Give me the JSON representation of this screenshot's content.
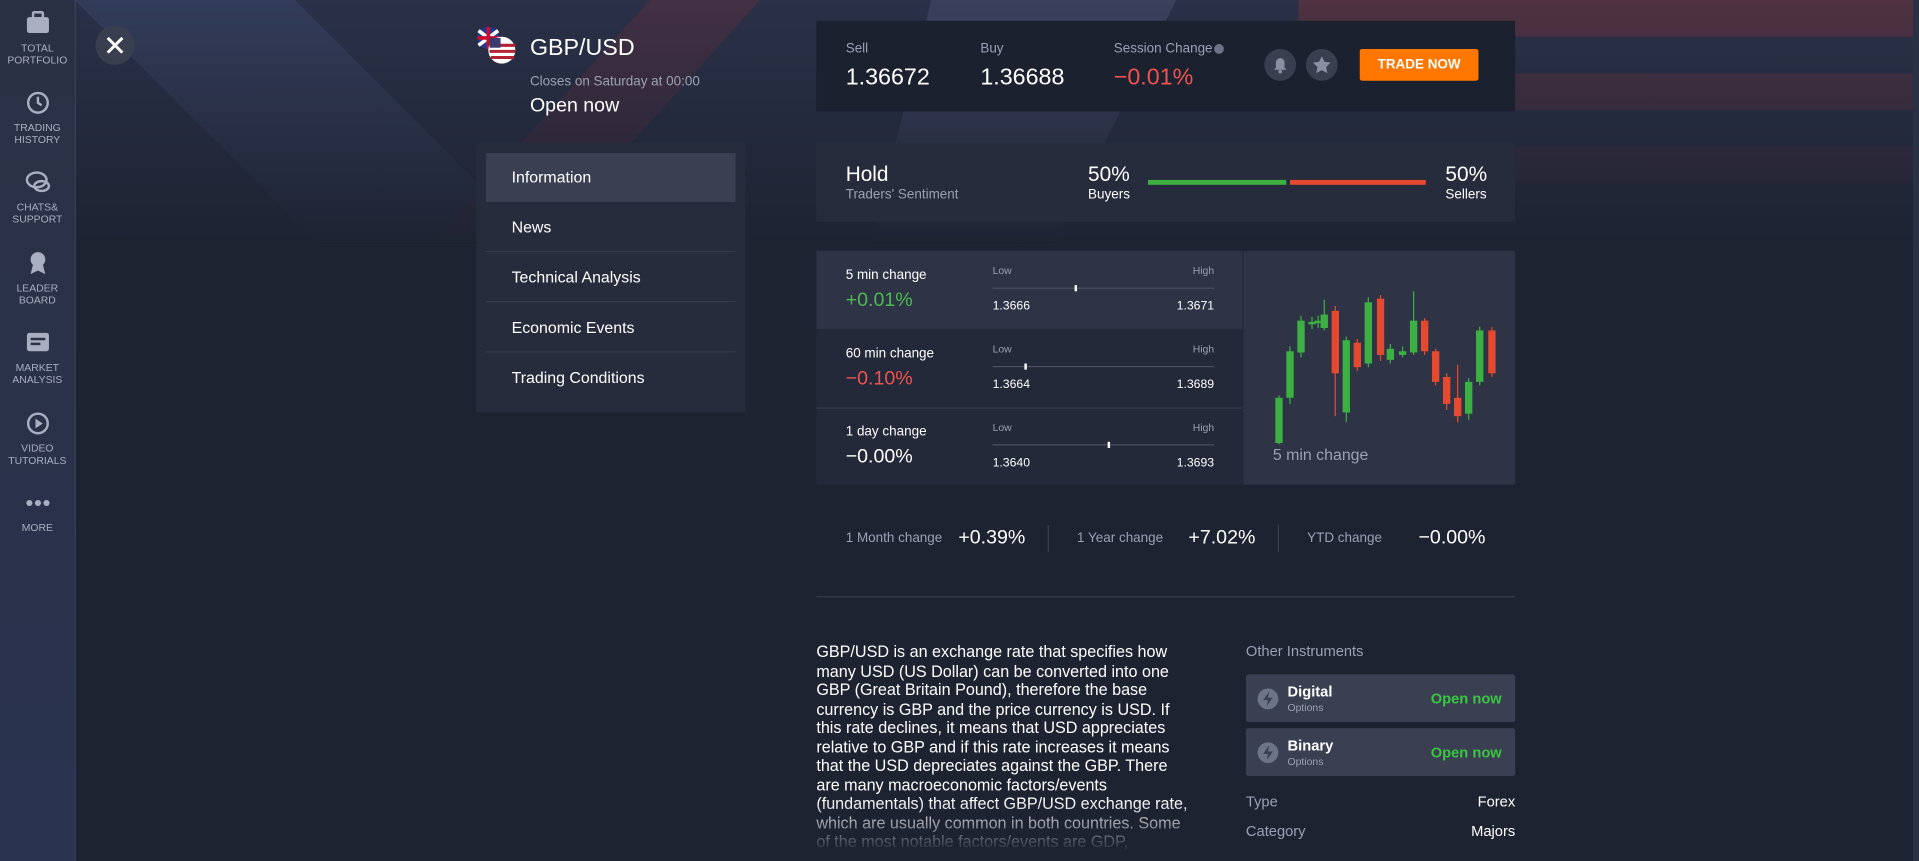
{
  "sidebar": {
    "items": [
      {
        "lines": [
          "TOTAL",
          "PORTFOLIO"
        ]
      },
      {
        "lines": [
          "TRADING",
          "HISTORY"
        ]
      },
      {
        "lines": [
          "CHATS&",
          "SUPPORT"
        ]
      },
      {
        "lines": [
          "LEADER",
          "BOARD"
        ]
      },
      {
        "lines": [
          "MARKET",
          "ANALYSIS"
        ]
      },
      {
        "lines": [
          "VIDEO",
          "TUTORIALS"
        ]
      },
      {
        "lines": [
          "MORE"
        ]
      }
    ]
  },
  "instrument": {
    "title": "GBP/USD",
    "closes": "Closes on Saturday at 00:00",
    "status": "Open now"
  },
  "quote": {
    "sell_label": "Sell",
    "sell": "1.36672",
    "buy_label": "Buy",
    "buy": "1.36688",
    "change_label": "Session Change",
    "change": "−0.01%",
    "button": "TRADE NOW"
  },
  "menu": [
    "Information",
    "News",
    "Technical Analysis",
    "Economic Events",
    "Trading Conditions"
  ],
  "sentiment": {
    "title": "Hold",
    "subtitle": "Traders' Sentiment",
    "buyers": "50%",
    "buyers_label": "Buyers",
    "sellers": "50%",
    "sellers_label": "Sellers"
  },
  "changes": {
    "rows": [
      {
        "label": "5 min change",
        "value": "+0.01%",
        "low_label": "Low",
        "high_label": "High",
        "low": "1.3666",
        "high": "1.3671"
      },
      {
        "label": "60 min change",
        "value": "−0.10%",
        "low_label": "Low",
        "high_label": "High",
        "low": "1.3664",
        "high": "1.3689"
      },
      {
        "label": "1 day change",
        "value": "−0.00%",
        "low_label": "Low",
        "high_label": "High",
        "low": "1.3640",
        "high": "1.3693"
      }
    ],
    "chart_label": "5 min change",
    "periods": [
      {
        "label": "1 Month change",
        "value": "+0.39%"
      },
      {
        "label": "1 Year change",
        "value": "+7.02%"
      },
      {
        "label": "YTD change",
        "value": "−0.00%"
      }
    ]
  },
  "description": "GBP/USD is an exchange rate that specifies how many USD (US Dollar) can be converted into one GBP (Great Britain Pound), therefore the base currency is GBP and the price currency is USD. If this rate declines, it means that USD appreciates relative to GBP and if this rate increases it means that the USD depreciates against the GBP. There are many macroeconomic factors/events (fundamentals) that affect GBP/USD exchange rate, which are usually common in both countries. Some of the most notable factors/events are GDP,",
  "other": {
    "title": "Other Instruments",
    "cards": [
      {
        "name": "Digital",
        "sub": "Options",
        "status": "Open now"
      },
      {
        "name": "Binary",
        "sub": "Options",
        "status": "Open now"
      }
    ],
    "props": [
      {
        "key": "Type",
        "value": "Forex"
      },
      {
        "key": "Category",
        "value": "Majors"
      }
    ]
  }
}
